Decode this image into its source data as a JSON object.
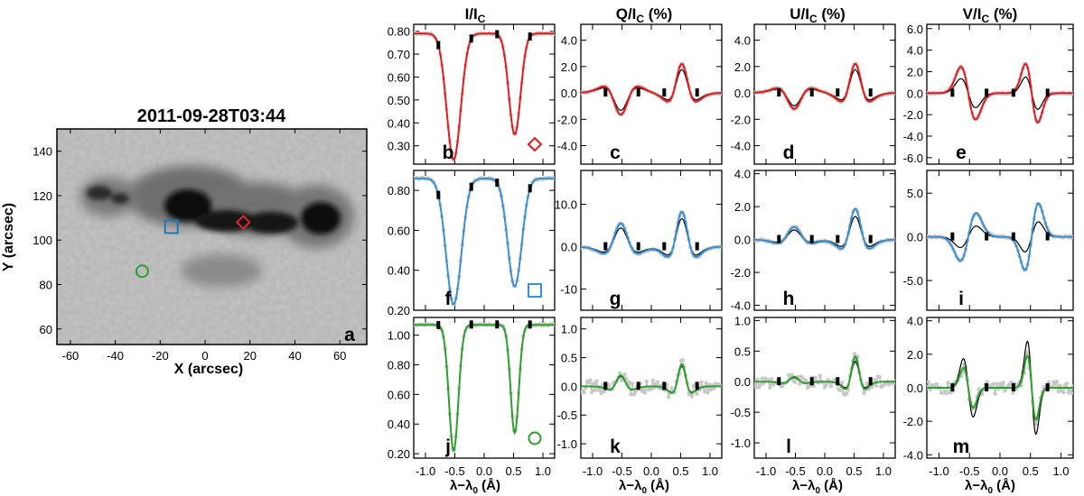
{
  "image_panel": {
    "title": "2011-09-28T03:44",
    "label": "a",
    "xlabel": "X (arcsec)",
    "ylabel": "Y (arcsec)",
    "xticks": [
      "-60",
      "-40",
      "-20",
      "0",
      "20",
      "40",
      "60"
    ],
    "yticks": [
      "60",
      "80",
      "100",
      "120",
      "140"
    ],
    "xlim": [
      -66,
      72
    ],
    "ylim": [
      53,
      150
    ],
    "markers": [
      {
        "shape": "diamond",
        "color": "#d62728",
        "x": 17,
        "y": 108
      },
      {
        "shape": "square",
        "color": "#1f77b4",
        "x": -15,
        "y": 106
      },
      {
        "shape": "circle",
        "color": "#2ca02c",
        "x": -28,
        "y": 86
      }
    ]
  },
  "column_titles": {
    "I": {
      "main": "I/I",
      "sub": "C",
      "suffix": ""
    },
    "Q": {
      "main": "Q/I",
      "sub": "C",
      "suffix": " (%)"
    },
    "U": {
      "main": "U/I",
      "sub": "C",
      "suffix": " (%)"
    },
    "V": {
      "main": "V/I",
      "sub": "C",
      "suffix": " (%)"
    }
  },
  "shared_xlabel": {
    "main": "λ−λ",
    "sub": "0",
    "suffix": " (Å)"
  },
  "shared_xticks": [
    "-1.0",
    "-0.5",
    "0.0",
    "0.5",
    "1.0"
  ],
  "chart_data": {
    "type": "line",
    "x_range": [
      -1.2,
      1.2
    ],
    "panels": [
      {
        "label": "b",
        "row": 0,
        "col": 0,
        "stokes": "I",
        "color": "#e41a1c",
        "marker": "diamond",
        "ylim": [
          0.22,
          0.83
        ],
        "yticks": [
          "0.30",
          "0.40",
          "0.50",
          "0.60",
          "0.70",
          "0.80"
        ],
        "continuum": 0.79,
        "lines": [
          {
            "center": -0.52,
            "depth": 0.55,
            "width": 0.12
          },
          {
            "center": 0.52,
            "depth": 0.44,
            "width": 0.1
          }
        ],
        "obs_scale": 1.0,
        "fit_scale": 1.0
      },
      {
        "label": "c",
        "row": 0,
        "col": 1,
        "stokes": "Q",
        "color": "#e41a1c",
        "ylim": [
          -5.4,
          5.2
        ],
        "yticks": [
          "-4.0",
          "-2.0",
          "0.0",
          "2.0",
          "4.0"
        ],
        "lines": [
          {
            "center": -0.52,
            "amp": -3.0,
            "width": 0.12
          },
          {
            "center": 0.52,
            "amp": 4.0,
            "width": 0.1
          }
        ],
        "obs_scale": 1.0,
        "fit_scale": 0.8
      },
      {
        "label": "d",
        "row": 0,
        "col": 2,
        "stokes": "U",
        "color": "#e41a1c",
        "ylim": [
          -5.4,
          5.2
        ],
        "yticks": [
          "-4.0",
          "-2.0",
          "0.0",
          "2.0",
          "4.0"
        ],
        "lines": [
          {
            "center": -0.52,
            "amp": -2.2,
            "width": 0.12
          },
          {
            "center": 0.52,
            "amp": 4.0,
            "width": 0.1
          }
        ],
        "obs_scale": 1.0,
        "fit_scale": 0.8
      },
      {
        "label": "e",
        "row": 0,
        "col": 3,
        "stokes": "V",
        "color": "#e41a1c",
        "ylim": [
          -6.6,
          6.4
        ],
        "yticks": [
          "-6.0",
          "-4.0",
          "-2.0",
          "0.0",
          "2.0",
          "4.0",
          "6.0"
        ],
        "lines": [
          {
            "center": -0.52,
            "amp": -4.5,
            "width": 0.12
          },
          {
            "center": 0.52,
            "amp": -5.0,
            "width": 0.1
          }
        ],
        "obs_scale": 1.0,
        "fit_scale": 0.55
      },
      {
        "label": "f",
        "row": 1,
        "col": 0,
        "stokes": "I",
        "color": "#3a8fd1",
        "marker": "square",
        "ylim": [
          0.2,
          0.9
        ],
        "yticks": [
          "0.20",
          "0.40",
          "0.60",
          "0.80"
        ],
        "continuum": 0.86,
        "lines": [
          {
            "center": -0.52,
            "depth": 0.63,
            "width": 0.13
          },
          {
            "center": 0.52,
            "depth": 0.54,
            "width": 0.12
          }
        ],
        "obs_scale": 1.0,
        "fit_scale": 1.0
      },
      {
        "label": "g",
        "row": 1,
        "col": 1,
        "stokes": "Q",
        "color": "#3a8fd1",
        "ylim": [
          -15,
          18
        ],
        "yticks": [
          "-10",
          "0.0",
          "10.0"
        ],
        "lines": [
          {
            "center": -0.52,
            "amp": 10.0,
            "width": 0.12
          },
          {
            "center": 0.52,
            "amp": 15.0,
            "width": 0.1
          }
        ],
        "obs_scale": 1.0,
        "fit_scale": 0.8
      },
      {
        "label": "h",
        "row": 1,
        "col": 2,
        "stokes": "U",
        "color": "#3a8fd1",
        "ylim": [
          -4.3,
          4.2
        ],
        "yticks": [
          "-4.0",
          "-2.0",
          "0.0",
          "2.0",
          "4.0"
        ],
        "lines": [
          {
            "center": -0.52,
            "amp": 1.4,
            "width": 0.12
          },
          {
            "center": 0.52,
            "amp": 3.4,
            "width": 0.1
          }
        ],
        "obs_scale": 1.0,
        "fit_scale": 0.75
      },
      {
        "label": "i",
        "row": 1,
        "col": 3,
        "stokes": "V",
        "color": "#3a8fd1",
        "ylim": [
          -8.4,
          7.6
        ],
        "yticks": [
          "-5.0",
          "0.0",
          "5.0"
        ],
        "lines": [
          {
            "center": -0.52,
            "amp": 5.0,
            "width": 0.13
          },
          {
            "center": 0.52,
            "amp": 7.0,
            "width": 0.11
          }
        ],
        "obs_scale": 1.0,
        "fit_scale": 0.45
      },
      {
        "label": "j",
        "row": 2,
        "col": 0,
        "stokes": "I",
        "color": "#2ca02c",
        "marker": "circle",
        "ylim": [
          0.17,
          1.12
        ],
        "yticks": [
          "0.20",
          "0.40",
          "0.60",
          "0.80",
          "1.00"
        ],
        "continuum": 1.07,
        "lines": [
          {
            "center": -0.52,
            "depth": 0.85,
            "width": 0.08
          },
          {
            "center": 0.52,
            "depth": 0.73,
            "width": 0.07
          }
        ],
        "obs_scale": 1.0,
        "fit_scale": 1.0
      },
      {
        "label": "k",
        "row": 2,
        "col": 1,
        "stokes": "Q",
        "color": "#2ca02c",
        "ylim": [
          -1.25,
          1.2
        ],
        "yticks": [
          "-1.0",
          "-0.5",
          "0.0",
          "0.5",
          "1.0"
        ],
        "lines": [
          {
            "center": -0.52,
            "amp": 0.35,
            "width": 0.08
          },
          {
            "center": 0.52,
            "amp": 0.7,
            "width": 0.07
          }
        ],
        "obs_scale": 1.0,
        "fit_scale": 0.9
      },
      {
        "label": "l",
        "row": 2,
        "col": 2,
        "stokes": "U",
        "color": "#2ca02c",
        "ylim": [
          -1.25,
          1.05
        ],
        "yticks": [
          "-1.0",
          "-0.5",
          "0.0",
          "0.5",
          "1.0"
        ],
        "lines": [
          {
            "center": -0.52,
            "amp": 0.15,
            "width": 0.08
          },
          {
            "center": 0.52,
            "amp": 0.75,
            "width": 0.07
          }
        ],
        "obs_scale": 1.0,
        "fit_scale": 0.8
      },
      {
        "label": "m",
        "row": 2,
        "col": 3,
        "stokes": "V",
        "color": "#2ca02c",
        "ylim": [
          -4.2,
          4.2
        ],
        "yticks": [
          "-4.0",
          "-2.0",
          "0.0",
          "2.0",
          "4.0"
        ],
        "lines": [
          {
            "center": -0.52,
            "amp": -2.2,
            "width": 0.08
          },
          {
            "center": 0.52,
            "amp": -3.5,
            "width": 0.07
          }
        ],
        "obs_scale": 1.0,
        "fit_scale": 1.45
      }
    ]
  }
}
